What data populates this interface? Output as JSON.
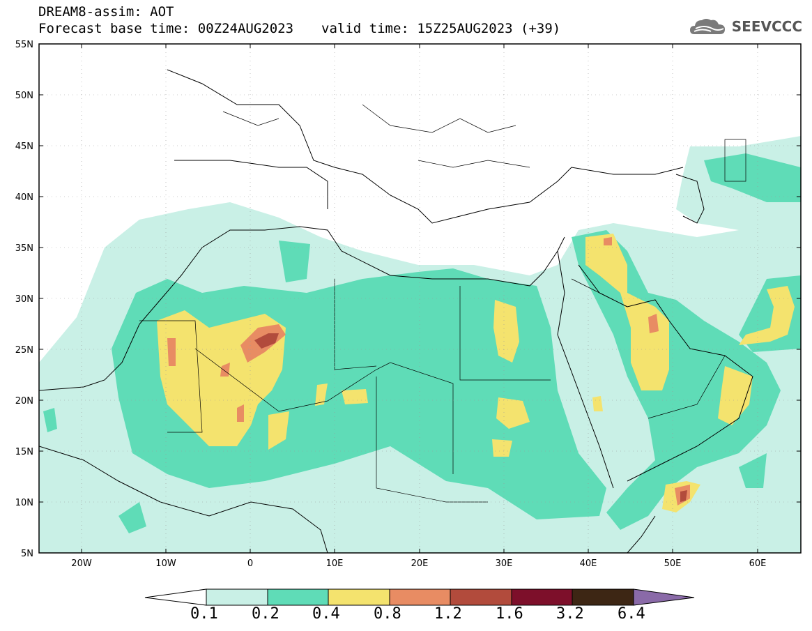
{
  "header": {
    "line1": "DREAM8-assim: AOT",
    "base_time": "Forecast base time: 00Z24AUG2023",
    "valid_time": "valid time: 15Z25AUG2023 (+39)"
  },
  "logo": {
    "text": "SEEVCCC",
    "icon": "cloud-icon"
  },
  "map": {
    "lat_labels": [
      "55N",
      "50N",
      "45N",
      "40N",
      "35N",
      "30N",
      "25N",
      "20N",
      "15N",
      "10N",
      "5N"
    ],
    "lon_labels": [
      "20W",
      "10W",
      "0",
      "10E",
      "20E",
      "30E",
      "40E",
      "50E",
      "60E"
    ],
    "lat_range": [
      5,
      55
    ],
    "lon_range": [
      -25,
      65
    ]
  },
  "colorbar": {
    "labels": [
      "0.1",
      "0.2",
      "0.4",
      "0.8",
      "1.2",
      "1.6",
      "3.2",
      "6.4"
    ],
    "colors": [
      "#c9f0e6",
      "#5fdcb7",
      "#f4e36e",
      "#e88c63",
      "#b24b3c",
      "#7d0f2a",
      "#3d2614",
      "#8a6aa8"
    ]
  },
  "field_colors": {
    "lt01": "#c9f0e6",
    "lt02": "#5fdcb7",
    "lt04": "#f4e36e",
    "lt08": "#e88c63",
    "lt12": "#b24b3c",
    "lt16": "#7d0f2a"
  }
}
